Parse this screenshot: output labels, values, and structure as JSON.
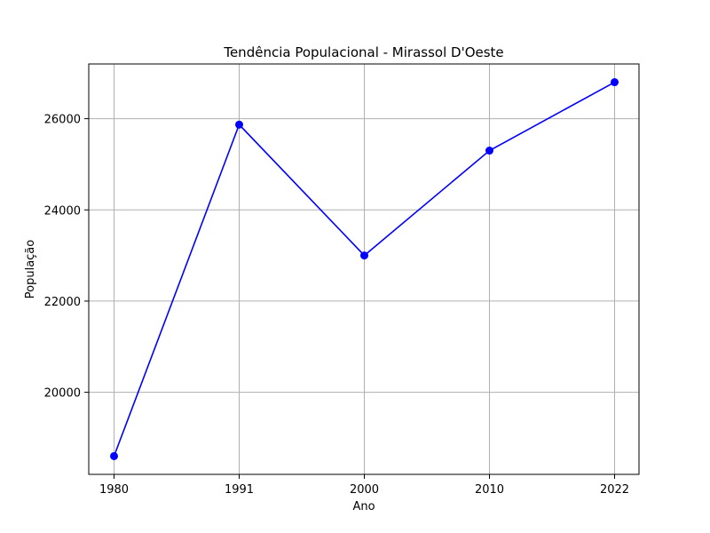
{
  "chart_data": {
    "type": "line",
    "title": "Tendência Populacional - Mirassol D'Oeste",
    "xlabel": "Ano",
    "ylabel": "População",
    "categories": [
      "1980",
      "1991",
      "2000",
      "2010",
      "2022"
    ],
    "series": [
      {
        "values": [
          18600,
          25870,
          23000,
          25300,
          26800
        ],
        "color": "#0000ff",
        "marker": "circle"
      }
    ],
    "y_ticks": [
      20000,
      22000,
      24000,
      26000
    ],
    "ylim": [
      18200,
      27200
    ],
    "grid": true,
    "legend": "none"
  }
}
